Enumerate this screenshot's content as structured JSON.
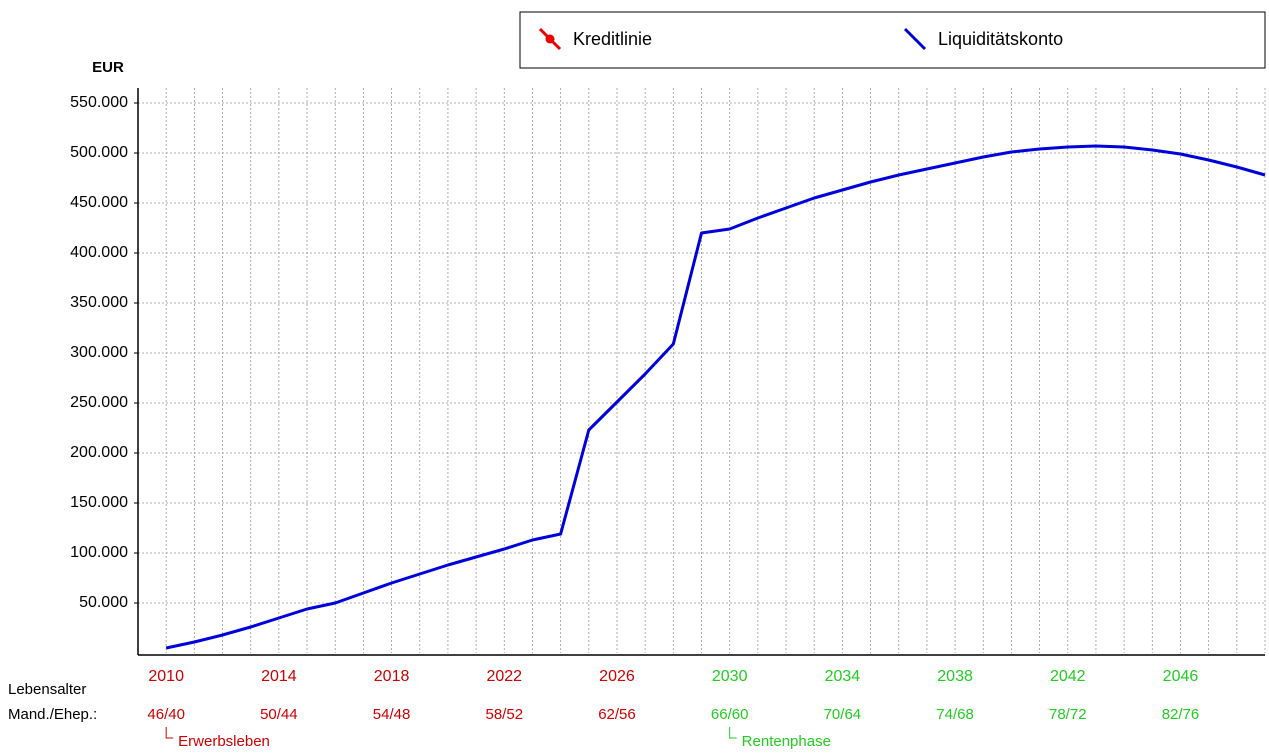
{
  "chart_data": {
    "type": "line",
    "y_label": "EUR",
    "x": [
      2010,
      2011,
      2012,
      2013,
      2014,
      2015,
      2016,
      2017,
      2018,
      2019,
      2020,
      2021,
      2022,
      2023,
      2024,
      2025,
      2026,
      2027,
      2028,
      2029,
      2030,
      2031,
      2032,
      2033,
      2034,
      2035,
      2036,
      2037,
      2038,
      2039,
      2040,
      2041,
      2042,
      2043,
      2044,
      2045,
      2046,
      2047,
      2048,
      2049
    ],
    "series": [
      {
        "name": "Liquiditätskonto",
        "color": "#0000dd",
        "values": [
          5000,
          11000,
          18000,
          26000,
          35000,
          44000,
          50000,
          60000,
          70000,
          79000,
          88000,
          96000,
          104000,
          113000,
          119000,
          223000,
          251000,
          279000,
          309000,
          420000,
          424000,
          435000,
          445000,
          455000,
          463000,
          471000,
          478000,
          484000,
          490000,
          496000,
          501000,
          504000,
          506000,
          507000,
          506000,
          503000,
          499000,
          493000,
          486000,
          478000
        ]
      }
    ],
    "legend_only": [
      {
        "name": "Kreditlinie",
        "color": "#ee0000"
      }
    ],
    "xlim": [
      2009,
      2049
    ],
    "ylim": [
      0,
      565000
    ],
    "yticks": [
      {
        "value": 50000,
        "label": "50.000"
      },
      {
        "value": 100000,
        "label": "100.000"
      },
      {
        "value": 150000,
        "label": "150.000"
      },
      {
        "value": 200000,
        "label": "200.000"
      },
      {
        "value": 250000,
        "label": "250.000"
      },
      {
        "value": 300000,
        "label": "300.000"
      },
      {
        "value": 350000,
        "label": "350.000"
      },
      {
        "value": 400000,
        "label": "400.000"
      },
      {
        "value": 450000,
        "label": "450.000"
      },
      {
        "value": 500000,
        "label": "500.000"
      },
      {
        "value": 550000,
        "label": "550.000"
      }
    ],
    "xticks": [
      2010,
      2014,
      2018,
      2022,
      2026,
      2030,
      2034,
      2038,
      2042,
      2046
    ],
    "xtick_colors": [
      "#cc0000",
      "#cc0000",
      "#cc0000",
      "#cc0000",
      "#cc0000",
      "#22cc22",
      "#22cc22",
      "#22cc22",
      "#22cc22",
      "#22cc22"
    ],
    "age_row_label_1": "Lebensalter",
    "age_row_label_2": "Mand./Ehep.:",
    "age_labels": [
      "46/40",
      "50/44",
      "54/48",
      "58/52",
      "62/56",
      "66/60",
      "70/64",
      "74/68",
      "78/72",
      "82/76"
    ],
    "phases": [
      {
        "label": "Erwerbsleben",
        "x": 2010,
        "color": "#cc0000"
      },
      {
        "label": "Rentenphase",
        "x": 2030,
        "color": "#22cc22"
      }
    ],
    "grid": true
  }
}
